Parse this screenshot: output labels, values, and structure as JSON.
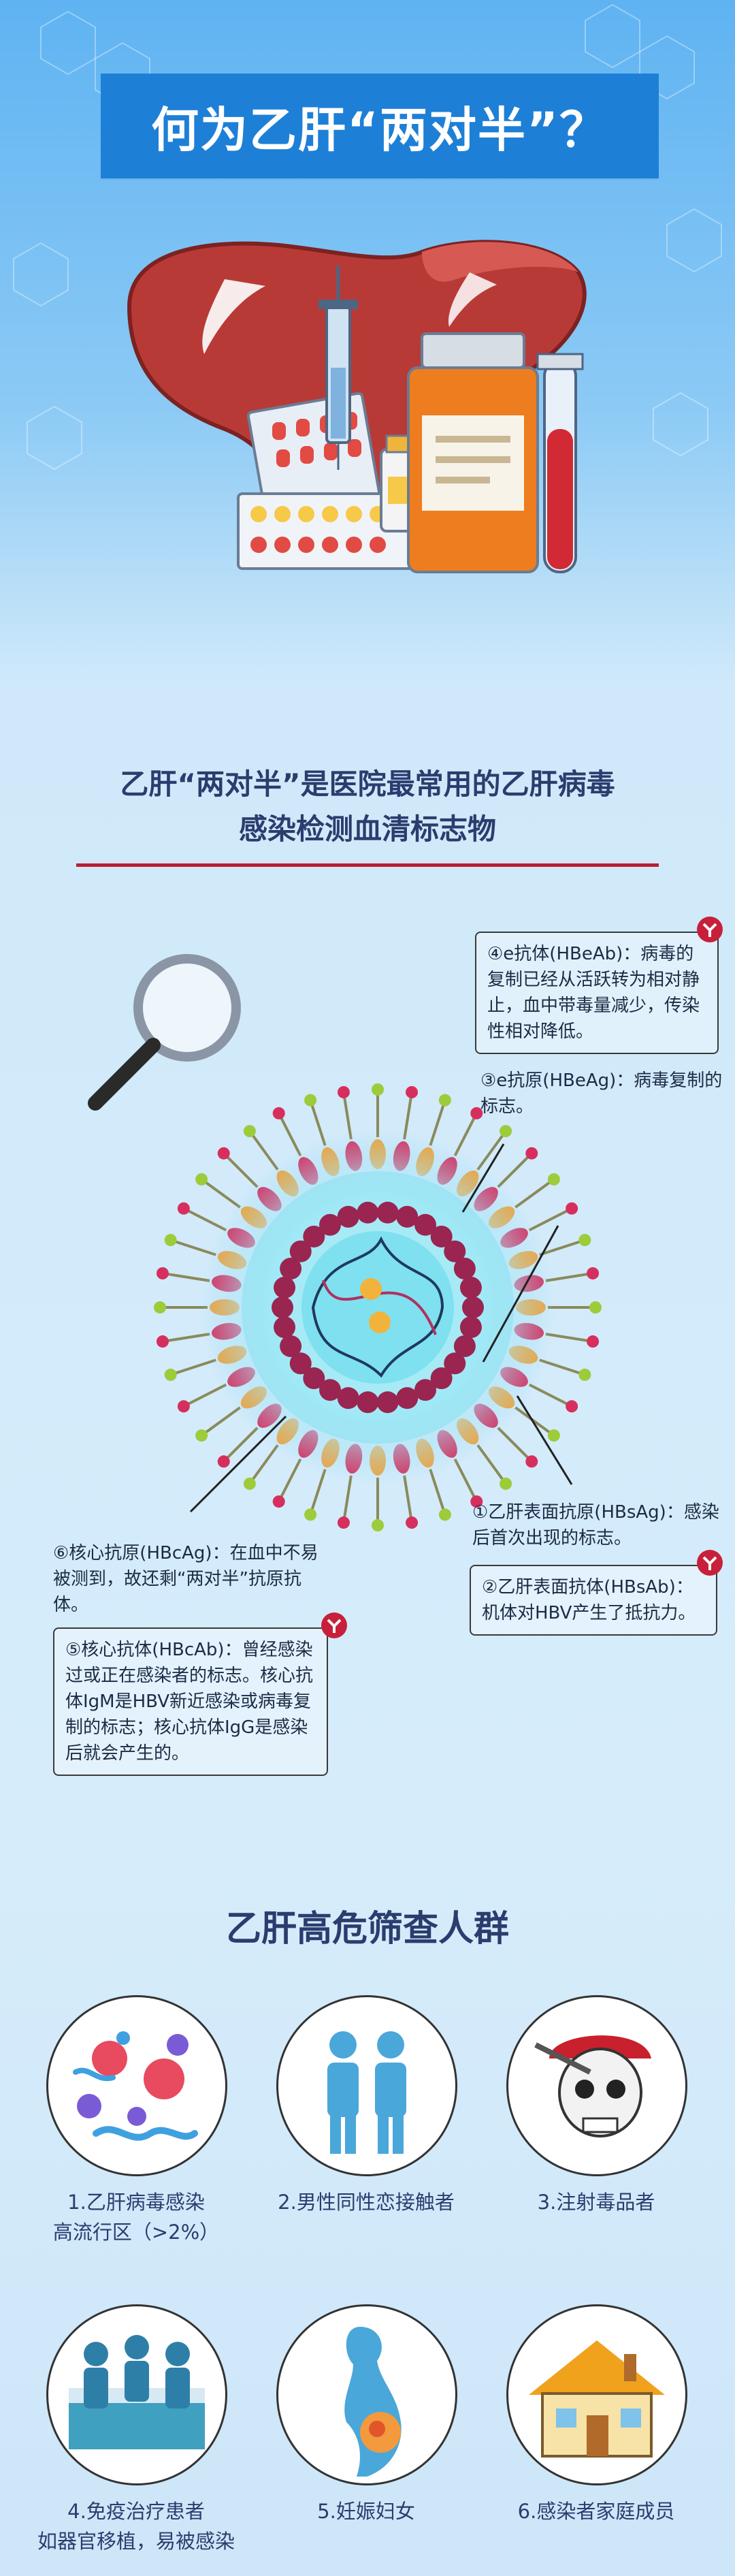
{
  "header": {
    "title": "何为乙肝“两对半”？"
  },
  "subtitle": {
    "line1": "乙肝“两对半”是医院最常用的乙肝病毒",
    "line2": "感染检测血清标志物"
  },
  "markers": [
    {
      "text": "④e抗体(HBeAb)：病毒的复制已经从活跃转为相对静止，血中带毒量减少，传染性相对降低。"
    },
    {
      "text": "③e抗原(HBeAg)：病毒复制的标志。"
    },
    {
      "text": "①乙肝表面抗原(HBsAg)：感染后首次出现的标志。"
    },
    {
      "text": "②乙肝表面抗体(HBsAb)：机体对HBV产生了抵抗力。"
    },
    {
      "text": "⑥核心抗原(HBcAg)：在血中不易被测到，故还剩“两对半”抗原抗体。"
    },
    {
      "text": "⑤核心抗体(HBcAb)：曾经感染过或正在感染者的标志。核心抗体IgM是HBV新近感染或病毒复制的标志；核心抗体IgG是感染后就会产生的。"
    }
  ],
  "section2": {
    "title": "乙肝高危筛查人群"
  },
  "groups": [
    {
      "label": "1.乙肝病毒感染\n高流行区（>2%）",
      "icon": "virus-cluster-icon"
    },
    {
      "label": "2.男性同性恋接触者",
      "icon": "two-men-icon"
    },
    {
      "label": "3.注射毒品者",
      "icon": "skull-icon"
    },
    {
      "label": "4.免疫治疗患者\n如器官移植，易被感染",
      "icon": "surgery-icon"
    },
    {
      "label": "5.妊娠妇女",
      "icon": "pregnant-woman-icon"
    },
    {
      "label": "6.感染者家庭成员",
      "icon": "house-icon"
    }
  ],
  "colors": {
    "banner": "#1e7fd6",
    "accent_red": "#b7212e",
    "text_dark": "#2a3d6e"
  }
}
